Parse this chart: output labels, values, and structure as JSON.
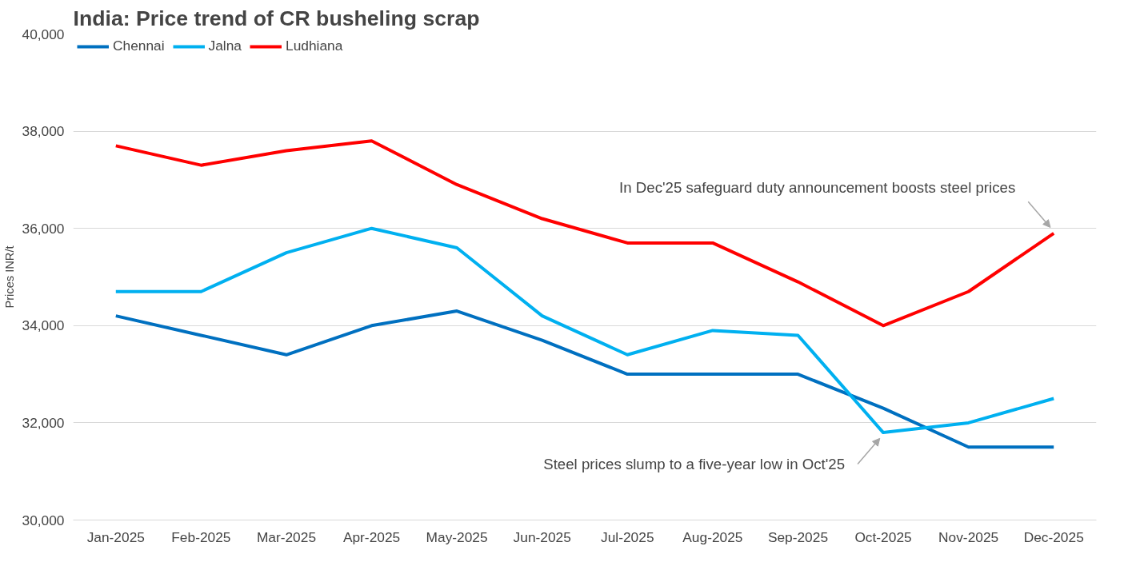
{
  "chart_data": {
    "type": "line",
    "title": "India: Price trend of CR busheling scrap",
    "ylabel": "Prices INR/t",
    "categories": [
      "Jan-2025",
      "Feb-2025",
      "Mar-2025",
      "Apr-2025",
      "May-2025",
      "Jun-2025",
      "Jul-2025",
      "Aug-2025",
      "Sep-2025",
      "Oct-2025",
      "Nov-2025",
      "Dec-2025"
    ],
    "series": [
      {
        "name": "Chennai",
        "color": "#0070c0",
        "values": [
          34200,
          33800,
          33400,
          34000,
          34300,
          33700,
          33000,
          33000,
          33000,
          32300,
          31500,
          31500
        ]
      },
      {
        "name": "Jalna",
        "color": "#00b0f0",
        "values": [
          34700,
          34700,
          35500,
          36000,
          35600,
          34200,
          33400,
          33900,
          33800,
          31800,
          32000,
          32500
        ]
      },
      {
        "name": "Ludhiana",
        "color": "#ff0000",
        "values": [
          37700,
          37300,
          37600,
          37800,
          36900,
          36200,
          35700,
          35700,
          34900,
          34000,
          34700,
          35900
        ]
      }
    ],
    "ylim": [
      30000,
      40000
    ],
    "yticks": [
      {
        "value": 30000,
        "label": "30,000"
      },
      {
        "value": 32000,
        "label": "32,000"
      },
      {
        "value": 34000,
        "label": "34,000"
      },
      {
        "value": 36000,
        "label": "36,000"
      },
      {
        "value": 38000,
        "label": "38,000"
      },
      {
        "value": 40000,
        "label": "40,000"
      }
    ],
    "grid": "y",
    "legend": "top left",
    "marker": "none",
    "line_style": "solid",
    "annotations": [
      {
        "text": "In Dec'25 safeguard duty announcement boosts steel prices",
        "x": "Dec-2025",
        "y": 35900
      },
      {
        "text": "Steel prices slump to a five-year low in Oct'25",
        "x": "Oct-2025",
        "y": 31800
      }
    ]
  }
}
